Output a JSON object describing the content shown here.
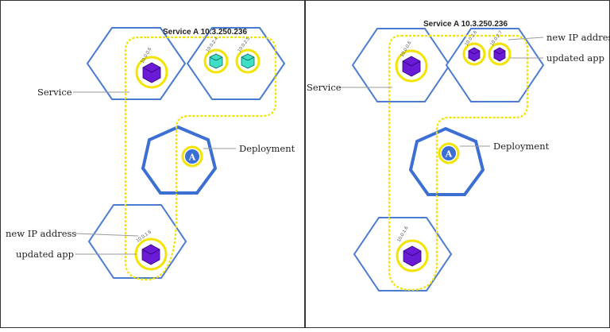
{
  "colors": {
    "node_border": "#4a7bd0",
    "deployment_border": "#3b6fd4",
    "service_path": "#f2e400",
    "pod_ring": "#f2e400",
    "pod_old": "#6a1bd6",
    "pod_new": "#3fe0c8",
    "panel_border": "#333333",
    "leader_line": "#999999"
  },
  "left_panel": {
    "service_title": "Service A 10.3.250.236",
    "service_label": "Service",
    "deployment_label": "Deployment",
    "new_ip_label": "new IP address",
    "updated_app_label": "updated app",
    "pods": {
      "top": {
        "ip": "10.0.0.6",
        "kind": "old"
      },
      "right1": {
        "ip": "10.0.2.4",
        "kind": "new"
      },
      "right2": {
        "ip": "10.0.2.5",
        "kind": "new"
      },
      "bottom": {
        "ip": "10.0.1.6",
        "kind": "old"
      }
    }
  },
  "right_panel": {
    "service_title": "Service A 10.3.250.236",
    "service_label": "Service",
    "deployment_label": "Deployment",
    "new_ip_label": "new IP address",
    "updated_app_label": "updated app",
    "pods": {
      "top": {
        "ip": "10.0.0.6",
        "kind": "old"
      },
      "right1": {
        "ip": "10.0.2.6",
        "kind": "old"
      },
      "right2": {
        "ip": "10.0.2.7",
        "kind": "old"
      },
      "bottom": {
        "ip": "10.0.1.6",
        "kind": "old"
      }
    }
  }
}
